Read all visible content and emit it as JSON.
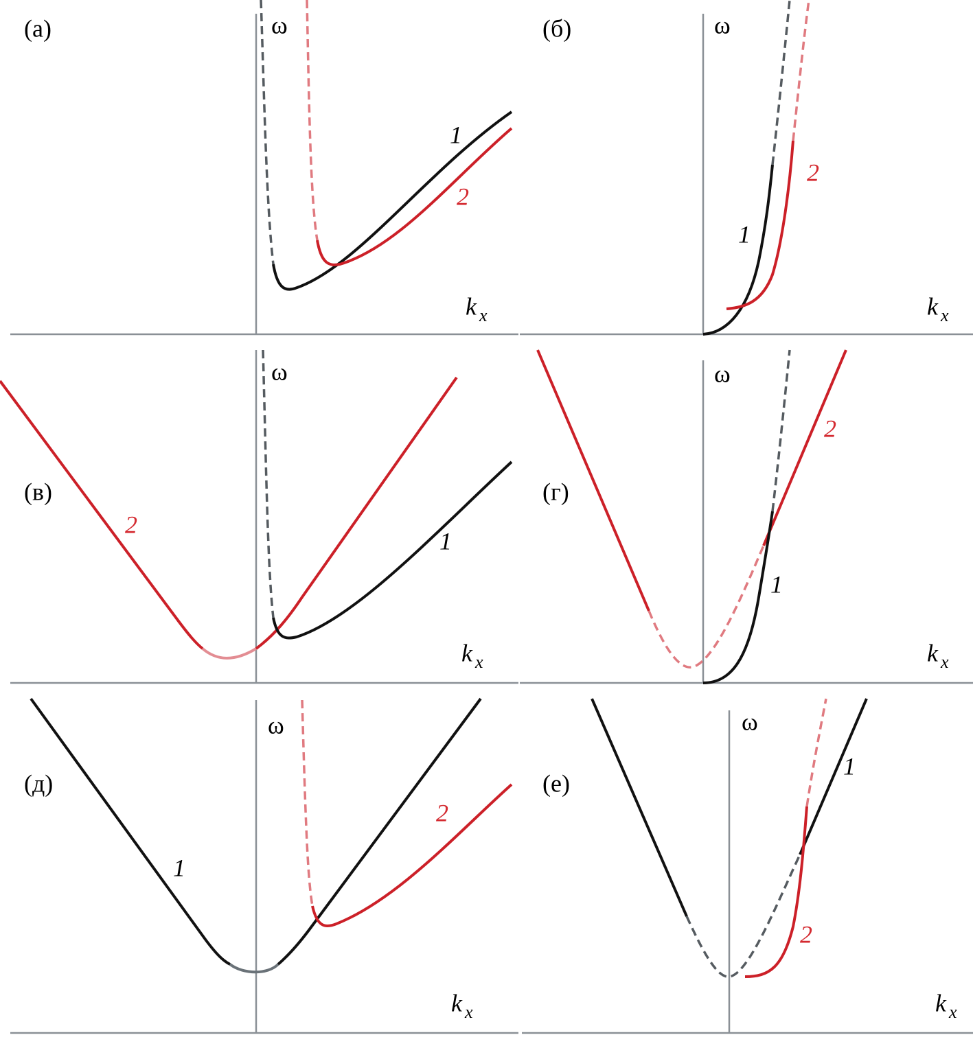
{
  "panels": [
    {
      "label": "(а)",
      "y_axis": "ω",
      "x_axis": "k",
      "x_sub": "x",
      "curve_labels": [
        "1",
        "2"
      ]
    },
    {
      "label": "(б)",
      "y_axis": "ω",
      "x_axis": "k",
      "x_sub": "x",
      "curve_labels": [
        "1",
        "2"
      ]
    },
    {
      "label": "(в)",
      "y_axis": "ω",
      "x_axis": "k",
      "x_sub": "x",
      "curve_labels": [
        "1",
        "2"
      ]
    },
    {
      "label": "(г)",
      "y_axis": "ω",
      "x_axis": "k",
      "x_sub": "x",
      "curve_labels": [
        "1",
        "2"
      ]
    },
    {
      "label": "(д)",
      "y_axis": "ω",
      "x_axis": "k",
      "x_sub": "x",
      "curve_labels": [
        "1",
        "2"
      ]
    },
    {
      "label": "(е)",
      "y_axis": "ω",
      "x_axis": "k",
      "x_sub": "x",
      "curve_labels": [
        "1",
        "2"
      ]
    }
  ]
}
